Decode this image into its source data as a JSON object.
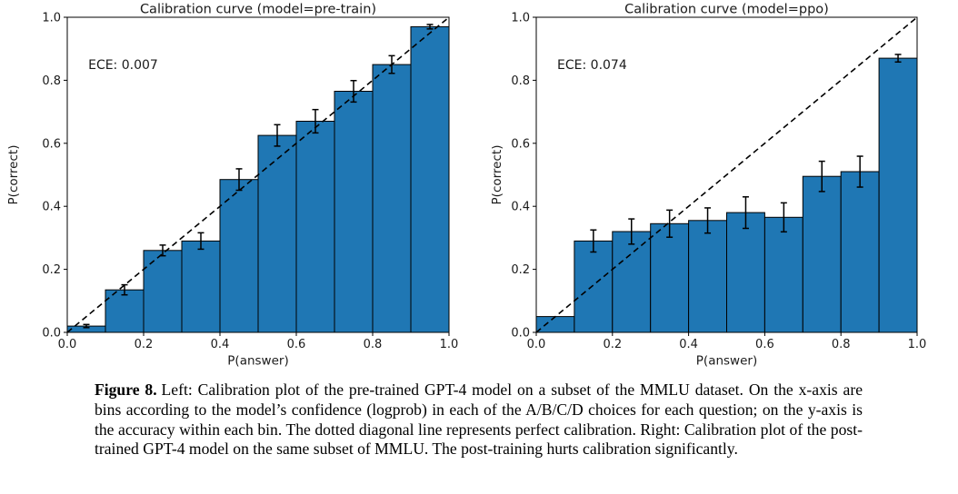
{
  "caption": {
    "label": "Figure 8.",
    "text": "Left: Calibration plot of the pre-trained GPT-4 model on a subset of the MMLU dataset. On the x-axis are bins according to the model’s confidence (logprob) in each of the A/B/C/D choices for each question; on the y-axis is the accuracy within each bin. The dotted diagonal line represents perfect calibration. Right: Calibration plot of the post-trained GPT-4 model on the same subset of MMLU. The post-training hurts calibration significantly."
  },
  "colors": {
    "bar_fill": "#1f77b4",
    "bar_edge": "#000000",
    "diagonal_line": "#000000",
    "error_bar": "#000000",
    "axis": "#000000"
  },
  "chart_data": [
    {
      "type": "bar",
      "title": "Calibration curve (model=pre-train)",
      "annotation": "ECE: 0.007",
      "xlabel": "P(answer)",
      "ylabel": "P(correct)",
      "xlim": [
        0,
        1
      ],
      "ylim": [
        0,
        1
      ],
      "xticks": [
        0.0,
        0.2,
        0.4,
        0.6,
        0.8,
        1.0
      ],
      "yticks": [
        0.0,
        0.2,
        0.4,
        0.6,
        0.8,
        1.0
      ],
      "grid": false,
      "diagonal_line": "dashed y=x (perfect calibration)",
      "bin_edges": [
        0.0,
        0.1,
        0.2,
        0.3,
        0.4,
        0.5,
        0.6,
        0.7,
        0.8,
        0.9,
        1.0
      ],
      "values": [
        0.02,
        0.135,
        0.26,
        0.29,
        0.485,
        0.625,
        0.67,
        0.765,
        0.85,
        0.97
      ],
      "errors": [
        0.005,
        0.016,
        0.017,
        0.026,
        0.034,
        0.034,
        0.037,
        0.034,
        0.028,
        0.007
      ]
    },
    {
      "type": "bar",
      "title": "Calibration curve (model=ppo)",
      "annotation": "ECE: 0.074",
      "xlabel": "P(answer)",
      "ylabel": "P(correct)",
      "xlim": [
        0,
        1
      ],
      "ylim": [
        0,
        1
      ],
      "xticks": [
        0.0,
        0.2,
        0.4,
        0.6,
        0.8,
        1.0
      ],
      "yticks": [
        0.0,
        0.2,
        0.4,
        0.6,
        0.8,
        1.0
      ],
      "grid": false,
      "diagonal_line": "dashed y=x (perfect calibration)",
      "bin_edges": [
        0.0,
        0.1,
        0.2,
        0.3,
        0.4,
        0.5,
        0.6,
        0.7,
        0.8,
        0.9,
        1.0
      ],
      "values": [
        0.05,
        0.29,
        0.32,
        0.345,
        0.355,
        0.38,
        0.365,
        0.495,
        0.51,
        0.87
      ],
      "errors": [
        0,
        0.035,
        0.04,
        0.043,
        0.04,
        0.05,
        0.046,
        0.048,
        0.049,
        0.012
      ]
    }
  ]
}
